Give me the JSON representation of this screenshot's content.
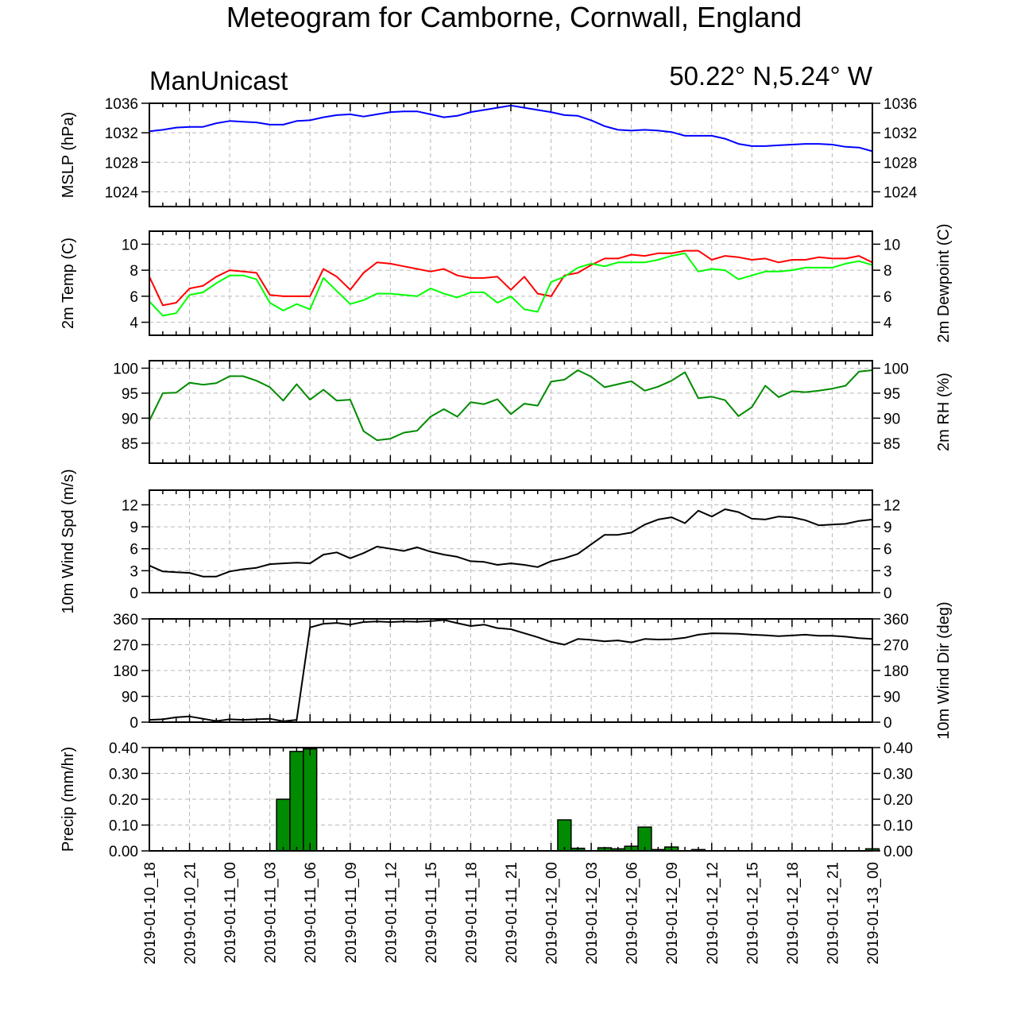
{
  "title": "Meteogram for Camborne, Cornwall, England",
  "subtitle_left": "ManUnicast",
  "subtitle_right": "50.22° N,5.24° W",
  "x_tick_labels": [
    "2019-01-10_18",
    "2019-01-10_21",
    "2019-01-11_00",
    "2019-01-11_03",
    "2019-01-11_06",
    "2019-01-11_09",
    "2019-01-11_12",
    "2019-01-11_15",
    "2019-01-11_18",
    "2019-01-11_21",
    "2019-01-12_00",
    "2019-01-12_03",
    "2019-01-12_06",
    "2019-01-12_09",
    "2019-01-12_12",
    "2019-01-12_15",
    "2019-01-12_18",
    "2019-01-12_21",
    "2019-01-13_00"
  ],
  "chart_data": [
    {
      "type": "line",
      "ylabel": "MSLP (hPa)",
      "ylim": [
        1022,
        1036
      ],
      "yticks": [
        1024,
        1028,
        1032,
        1036
      ],
      "right_ticks": true,
      "grid": true,
      "x_hours": [
        0,
        1,
        2,
        3,
        4,
        5,
        6,
        7,
        8,
        9,
        10,
        11,
        12,
        13,
        14,
        15,
        16,
        17,
        18,
        19,
        20,
        21,
        22,
        23,
        24,
        25,
        26,
        27,
        28,
        29,
        30,
        31,
        32,
        33,
        34,
        35,
        36,
        37,
        38,
        39,
        40,
        41,
        42,
        43,
        44,
        45,
        46,
        47,
        48,
        49,
        50,
        51,
        52,
        53,
        54
      ],
      "series": [
        {
          "color": "#0000ff",
          "values": [
            1032.2,
            1032.4,
            1032.7,
            1032.8,
            1032.8,
            1033.3,
            1033.6,
            1033.5,
            1033.4,
            1033.1,
            1033.1,
            1033.6,
            1033.7,
            1034.1,
            1034.4,
            1034.5,
            1034.2,
            1034.5,
            1034.8,
            1034.9,
            1034.9,
            1034.5,
            1034.1,
            1034.3,
            1034.8,
            1035.1,
            1035.4,
            1035.7,
            1035.4,
            1035.1,
            1034.8,
            1034.4,
            1034.3,
            1033.7,
            1032.9,
            1032.4,
            1032.3,
            1032.4,
            1032.3,
            1032.1,
            1031.6,
            1031.6,
            1031.6,
            1031.2,
            1030.5,
            1030.2,
            1030.2,
            1030.3,
            1030.4,
            1030.5,
            1030.5,
            1030.4,
            1030.1,
            1030.0,
            1029.5
          ]
        }
      ]
    },
    {
      "type": "line",
      "ylabel": "2m Temp (C)",
      "ylabel_right": "2m Dewpoint (C)",
      "ylim": [
        3,
        11
      ],
      "yticks": [
        4,
        6,
        8,
        10
      ],
      "right_ticks": true,
      "grid": true,
      "x_hours": [
        0,
        1,
        2,
        3,
        4,
        5,
        6,
        7,
        8,
        9,
        10,
        11,
        12,
        13,
        14,
        15,
        16,
        17,
        18,
        19,
        20,
        21,
        22,
        23,
        24,
        25,
        26,
        27,
        28,
        29,
        30,
        31,
        32,
        33,
        34,
        35,
        36,
        37,
        38,
        39,
        40,
        41,
        42,
        43,
        44,
        45,
        46,
        47,
        48,
        49,
        50,
        51,
        52,
        53,
        54
      ],
      "series": [
        {
          "color": "#ff0000",
          "values": [
            7.5,
            5.3,
            5.5,
            6.6,
            6.8,
            7.5,
            8.0,
            7.9,
            7.8,
            6.1,
            6.0,
            6.0,
            6.0,
            8.1,
            7.5,
            6.5,
            7.8,
            8.6,
            8.5,
            8.3,
            8.1,
            7.9,
            8.1,
            7.6,
            7.4,
            7.4,
            7.5,
            6.5,
            7.5,
            6.2,
            6.0,
            7.6,
            7.8,
            8.4,
            8.9,
            8.9,
            9.2,
            9.1,
            9.3,
            9.3,
            9.5,
            9.5,
            8.8,
            9.1,
            9.0,
            8.8,
            8.9,
            8.6,
            8.8,
            8.8,
            9.0,
            8.9,
            8.9,
            9.1,
            8.6
          ]
        },
        {
          "color": "#00ff00",
          "values": [
            5.6,
            4.5,
            4.7,
            6.1,
            6.3,
            7.0,
            7.6,
            7.6,
            7.3,
            5.5,
            4.9,
            5.4,
            5.0,
            7.4,
            6.4,
            5.4,
            5.7,
            6.2,
            6.2,
            6.1,
            6.0,
            6.6,
            6.2,
            5.9,
            6.3,
            6.3,
            5.5,
            6.0,
            5.0,
            4.8,
            7.1,
            7.5,
            8.2,
            8.5,
            8.3,
            8.6,
            8.6,
            8.6,
            8.8,
            9.1,
            9.3,
            7.9,
            8.1,
            8.0,
            7.3,
            7.6,
            7.9,
            7.9,
            8.0,
            8.2,
            8.2,
            8.2,
            8.5,
            8.7,
            8.4
          ]
        }
      ]
    },
    {
      "type": "line",
      "ylabel_right": "2m RH (%)",
      "ylim": [
        81,
        101.5
      ],
      "yticks": [
        85,
        90,
        95,
        100
      ],
      "right_ticks": true,
      "grid": true,
      "x_hours": [
        0,
        1,
        2,
        3,
        4,
        5,
        6,
        7,
        8,
        9,
        10,
        11,
        12,
        13,
        14,
        15,
        16,
        17,
        18,
        19,
        20,
        21,
        22,
        23,
        24,
        25,
        26,
        27,
        28,
        29,
        30,
        31,
        32,
        33,
        34,
        35,
        36,
        37,
        38,
        39,
        40,
        41,
        42,
        43,
        44,
        45,
        46,
        47,
        48,
        49,
        50,
        51,
        52,
        53,
        54
      ],
      "series": [
        {
          "color": "#008b00",
          "values": [
            89.5,
            95.0,
            95.1,
            97.1,
            96.7,
            97.0,
            98.4,
            98.4,
            97.5,
            96.2,
            93.5,
            96.8,
            93.7,
            95.7,
            93.5,
            93.7,
            87.4,
            85.6,
            85.9,
            87.1,
            87.5,
            90.3,
            91.8,
            90.3,
            93.2,
            92.8,
            93.8,
            90.8,
            92.9,
            92.5,
            97.3,
            97.7,
            99.6,
            98.3,
            96.2,
            96.8,
            97.4,
            95.5,
            96.3,
            97.5,
            99.2,
            94.0,
            94.3,
            93.6,
            90.4,
            92.2,
            96.5,
            94.2,
            95.4,
            95.2,
            95.5,
            95.9,
            96.5,
            99.3,
            99.6
          ]
        }
      ]
    },
    {
      "type": "line",
      "ylabel": "10m Wind Spd (m/s)",
      "ylim": [
        0,
        14
      ],
      "yticks": [
        0,
        3,
        6,
        9,
        12
      ],
      "right_ticks": true,
      "grid": true,
      "x_hours": [
        0,
        1,
        2,
        3,
        4,
        5,
        6,
        7,
        8,
        9,
        10,
        11,
        12,
        13,
        14,
        15,
        16,
        17,
        18,
        19,
        20,
        21,
        22,
        23,
        24,
        25,
        26,
        27,
        28,
        29,
        30,
        31,
        32,
        33,
        34,
        35,
        36,
        37,
        38,
        39,
        40,
        41,
        42,
        43,
        44,
        45,
        46,
        47,
        48,
        49,
        50,
        51,
        52,
        53,
        54
      ],
      "series": [
        {
          "color": "#000000",
          "values": [
            3.7,
            2.9,
            2.8,
            2.7,
            2.2,
            2.2,
            2.9,
            3.2,
            3.4,
            3.9,
            4.0,
            4.1,
            4.0,
            5.2,
            5.5,
            4.7,
            5.4,
            6.3,
            6.0,
            5.7,
            6.2,
            5.6,
            5.2,
            4.9,
            4.3,
            4.2,
            3.8,
            4.0,
            3.8,
            3.5,
            4.3,
            4.7,
            5.3,
            6.6,
            7.9,
            7.9,
            8.2,
            9.3,
            10.0,
            10.3,
            9.5,
            11.2,
            10.4,
            11.4,
            11.0,
            10.1,
            10.0,
            10.4,
            10.3,
            9.9,
            9.2,
            9.3,
            9.4,
            9.8,
            10.0
          ]
        }
      ]
    },
    {
      "type": "line",
      "ylabel_right": "10m Wind Dir (deg)",
      "ylim": [
        0,
        360
      ],
      "yticks": [
        0,
        90,
        180,
        270,
        360
      ],
      "right_ticks": true,
      "grid": true,
      "x_hours": [
        0,
        1,
        2,
        3,
        4,
        5,
        6,
        7,
        8,
        9,
        10,
        11,
        12,
        13,
        14,
        15,
        16,
        17,
        18,
        19,
        20,
        21,
        22,
        23,
        24,
        25,
        26,
        27,
        28,
        29,
        30,
        31,
        32,
        33,
        34,
        35,
        36,
        37,
        38,
        39,
        40,
        41,
        42,
        43,
        44,
        45,
        46,
        47,
        48,
        49,
        50,
        51,
        52,
        53,
        54
      ],
      "series": [
        {
          "color": "#000000",
          "values": [
            8,
            10,
            17,
            20,
            12,
            4,
            10,
            8,
            10,
            12,
            3,
            8,
            330,
            343,
            346,
            340,
            349,
            351,
            349,
            351,
            350,
            352,
            356,
            345,
            335,
            340,
            328,
            324,
            310,
            296,
            280,
            270,
            290,
            287,
            282,
            285,
            278,
            290,
            288,
            289,
            294,
            305,
            310,
            309,
            308,
            305,
            303,
            300,
            302,
            305,
            301,
            301,
            298,
            293,
            290
          ]
        }
      ]
    },
    {
      "type": "bar",
      "ylabel": "Precip (mm/hr)",
      "ylim": [
        0,
        0.4
      ],
      "yticks": [
        0.0,
        0.1,
        0.2,
        0.3,
        0.4
      ],
      "ytick_labels": [
        "0.00",
        "0.10",
        "0.20",
        "0.30",
        "0.40"
      ],
      "right_ticks": true,
      "grid": true,
      "bar_color": "#008b00",
      "x_hours": [
        0,
        1,
        2,
        3,
        4,
        5,
        6,
        7,
        8,
        9,
        10,
        11,
        12,
        13,
        14,
        15,
        16,
        17,
        18,
        19,
        20,
        21,
        22,
        23,
        24,
        25,
        26,
        27,
        28,
        29,
        30,
        31,
        32,
        33,
        34,
        35,
        36,
        37,
        38,
        39,
        40,
        41,
        42,
        43,
        44,
        45,
        46,
        47,
        48,
        49,
        50,
        51,
        52,
        53,
        54
      ],
      "values": [
        0,
        0,
        0,
        0,
        0,
        0,
        0,
        0,
        0,
        0,
        0.2,
        0.385,
        0.395,
        0,
        0,
        0,
        0,
        0,
        0,
        0,
        0,
        0,
        0,
        0,
        0,
        0,
        0,
        0,
        0,
        0,
        0,
        0.12,
        0.01,
        0,
        0.012,
        0.008,
        0.018,
        0.092,
        0.005,
        0.015,
        0,
        0.005,
        0,
        0,
        0,
        0,
        0,
        0,
        0,
        0,
        0,
        0,
        0,
        0,
        0.008
      ]
    }
  ]
}
